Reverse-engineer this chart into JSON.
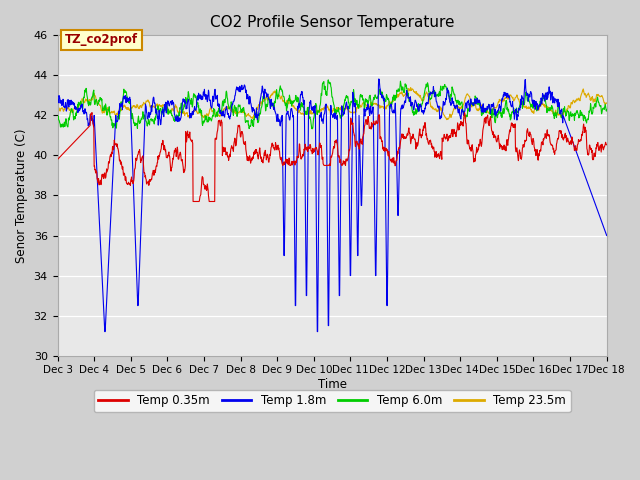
{
  "title": "CO2 Profile Sensor Temperature",
  "ylabel": "Senor Temperature (C)",
  "xlabel": "Time",
  "annotation": "TZ_co2prof",
  "ylim": [
    30,
    46
  ],
  "xlim_days": [
    3,
    18
  ],
  "plot_bg": "#e8e8e8",
  "legend": [
    "Temp 0.35m",
    "Temp 1.8m",
    "Temp 6.0m",
    "Temp 23.5m"
  ],
  "line_colors": [
    "#dd0000",
    "#0000ee",
    "#00cc00",
    "#ddaa00"
  ],
  "x_tick_labels": [
    "Dec 3",
    "Dec 4",
    "Dec 5",
    "Dec 6",
    "Dec 7",
    "Dec 8",
    "Dec 9",
    "Dec 10",
    "Dec 11",
    "Dec 12",
    "Dec 13",
    "Dec 14",
    "Dec 15",
    "Dec 16",
    "Dec 17",
    "Dec 18"
  ],
  "n_points": 1500
}
